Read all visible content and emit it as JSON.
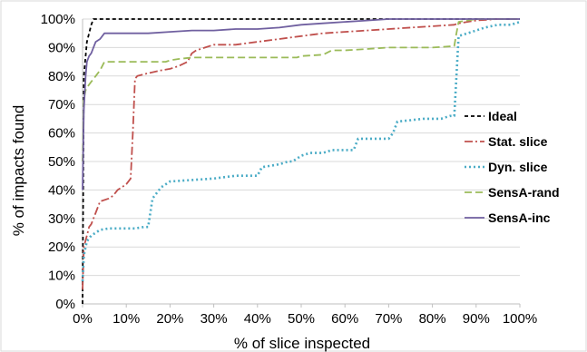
{
  "chart_data": {
    "type": "line",
    "title": "",
    "xlabel": "% of slice inspected",
    "ylabel": "% of impacts found",
    "xlim": [
      0,
      100
    ],
    "ylim": [
      0,
      100
    ],
    "x_ticks": [
      "0%",
      "10%",
      "20%",
      "30%",
      "40%",
      "50%",
      "60%",
      "70%",
      "80%",
      "90%",
      "100%"
    ],
    "y_ticks": [
      "0%",
      "10%",
      "20%",
      "30%",
      "40%",
      "50%",
      "60%",
      "70%",
      "80%",
      "90%",
      "100%"
    ],
    "grid": "horizontal",
    "legend_position": "right",
    "series": [
      {
        "name": "Ideal",
        "color": "#000000",
        "dash": "4,3",
        "x": [
          0,
          0.3,
          1,
          2,
          2.5,
          100
        ],
        "y": [
          0,
          80,
          92,
          98,
          100,
          100
        ]
      },
      {
        "name": "Stat. slice",
        "color": "#c0504d",
        "dash": "9,3,2,3",
        "x": [
          0,
          0.3,
          1,
          1.5,
          2,
          3,
          4,
          6,
          7,
          8,
          9,
          10,
          11,
          11.5,
          12,
          12.5,
          15,
          18,
          20,
          22,
          24,
          25,
          26,
          28,
          30,
          35,
          40,
          45,
          50,
          55,
          60,
          65,
          70,
          75,
          80,
          85,
          86,
          88,
          90,
          95,
          100
        ],
        "y": [
          5,
          20,
          24,
          27,
          28,
          32,
          36,
          37,
          38,
          40,
          41,
          42,
          44,
          60,
          79,
          80,
          81,
          82,
          82.5,
          83.5,
          85,
          88,
          89,
          90,
          91,
          91,
          92,
          93,
          94,
          95,
          95.5,
          96,
          96.5,
          97,
          97.5,
          98,
          98.5,
          99,
          99.5,
          100,
          100
        ]
      },
      {
        "name": "Dyn. slice",
        "color": "#4bacc6",
        "dash": "2,3",
        "x": [
          0,
          0.3,
          0.7,
          1,
          2,
          3,
          4,
          6,
          8,
          10,
          12,
          14,
          15,
          15.5,
          16,
          17,
          18,
          20,
          25,
          30,
          35,
          40,
          41,
          43,
          45,
          47,
          48,
          50,
          52,
          55,
          57,
          60,
          62,
          63,
          65,
          68,
          70,
          71,
          72,
          75,
          78,
          80,
          82,
          84,
          85,
          85.5,
          86,
          88,
          90,
          92,
          95,
          98,
          100
        ],
        "y": [
          8,
          17,
          20,
          22,
          24,
          25,
          26,
          26.5,
          26.5,
          26.5,
          26.5,
          27,
          27,
          32,
          37,
          39,
          41,
          43,
          43.5,
          44,
          45,
          45,
          48,
          48.5,
          49,
          50,
          50,
          52,
          53,
          53,
          54,
          54,
          54,
          58,
          58,
          58,
          58,
          60,
          64,
          64.5,
          65,
          65,
          65,
          66,
          66,
          80,
          94,
          95,
          96,
          97,
          98,
          98,
          99
        ]
      },
      {
        "name": "SensA-rand",
        "color": "#9bbb59",
        "dash": "8,4",
        "x": [
          0,
          0.3,
          0.7,
          1,
          2,
          3,
          4,
          5,
          10,
          15,
          19,
          20,
          22,
          25,
          30,
          35,
          40,
          45,
          49,
          50,
          55,
          57,
          60,
          65,
          70,
          75,
          80,
          85,
          85.5,
          86,
          90,
          95,
          100
        ],
        "y": [
          50,
          72,
          75,
          76,
          78,
          80,
          82,
          85,
          85,
          85,
          85,
          85.5,
          86,
          86.5,
          86.5,
          86.5,
          86.5,
          86.5,
          86.5,
          87,
          87.5,
          89,
          89,
          89.5,
          90,
          90,
          90,
          90.5,
          95,
          99,
          100,
          100,
          100
        ]
      },
      {
        "name": "SensA-inc",
        "color": "#7060a0",
        "dash": "",
        "x": [
          0,
          0.3,
          0.7,
          1,
          1.5,
          2,
          2.5,
          3,
          4,
          5,
          10,
          15,
          20,
          25,
          30,
          35,
          40,
          45,
          50,
          55,
          60,
          65,
          70,
          80,
          90,
          100
        ],
        "y": [
          40,
          68,
          80,
          85,
          87,
          88,
          90,
          92,
          93,
          95,
          95,
          95,
          95.5,
          96,
          96,
          96.5,
          96.5,
          97,
          98,
          98.5,
          99,
          99.5,
          100,
          100,
          100,
          100
        ]
      }
    ]
  }
}
